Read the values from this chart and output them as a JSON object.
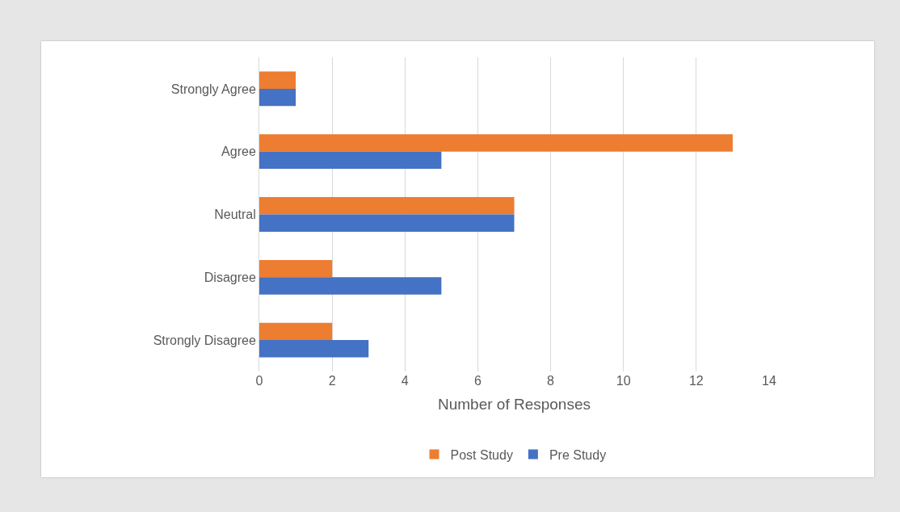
{
  "chart_data": {
    "type": "bar",
    "orientation": "horizontal",
    "xlabel": "Number of Responses",
    "categories": [
      "Strongly Agree",
      "Agree",
      "Neutral",
      "Disagree",
      "Strongly Disagree"
    ],
    "series": [
      {
        "name": "Post Study",
        "color": "#ed7d31",
        "values": [
          1,
          13,
          7,
          2,
          2
        ]
      },
      {
        "name": "Pre Study",
        "color": "#4472c4",
        "values": [
          1,
          5,
          7,
          5,
          3
        ]
      }
    ],
    "xlim": [
      0,
      14
    ],
    "xticks": [
      0,
      2,
      4,
      6,
      8,
      10,
      12,
      14
    ],
    "grid": "x",
    "legend": "bottom"
  }
}
